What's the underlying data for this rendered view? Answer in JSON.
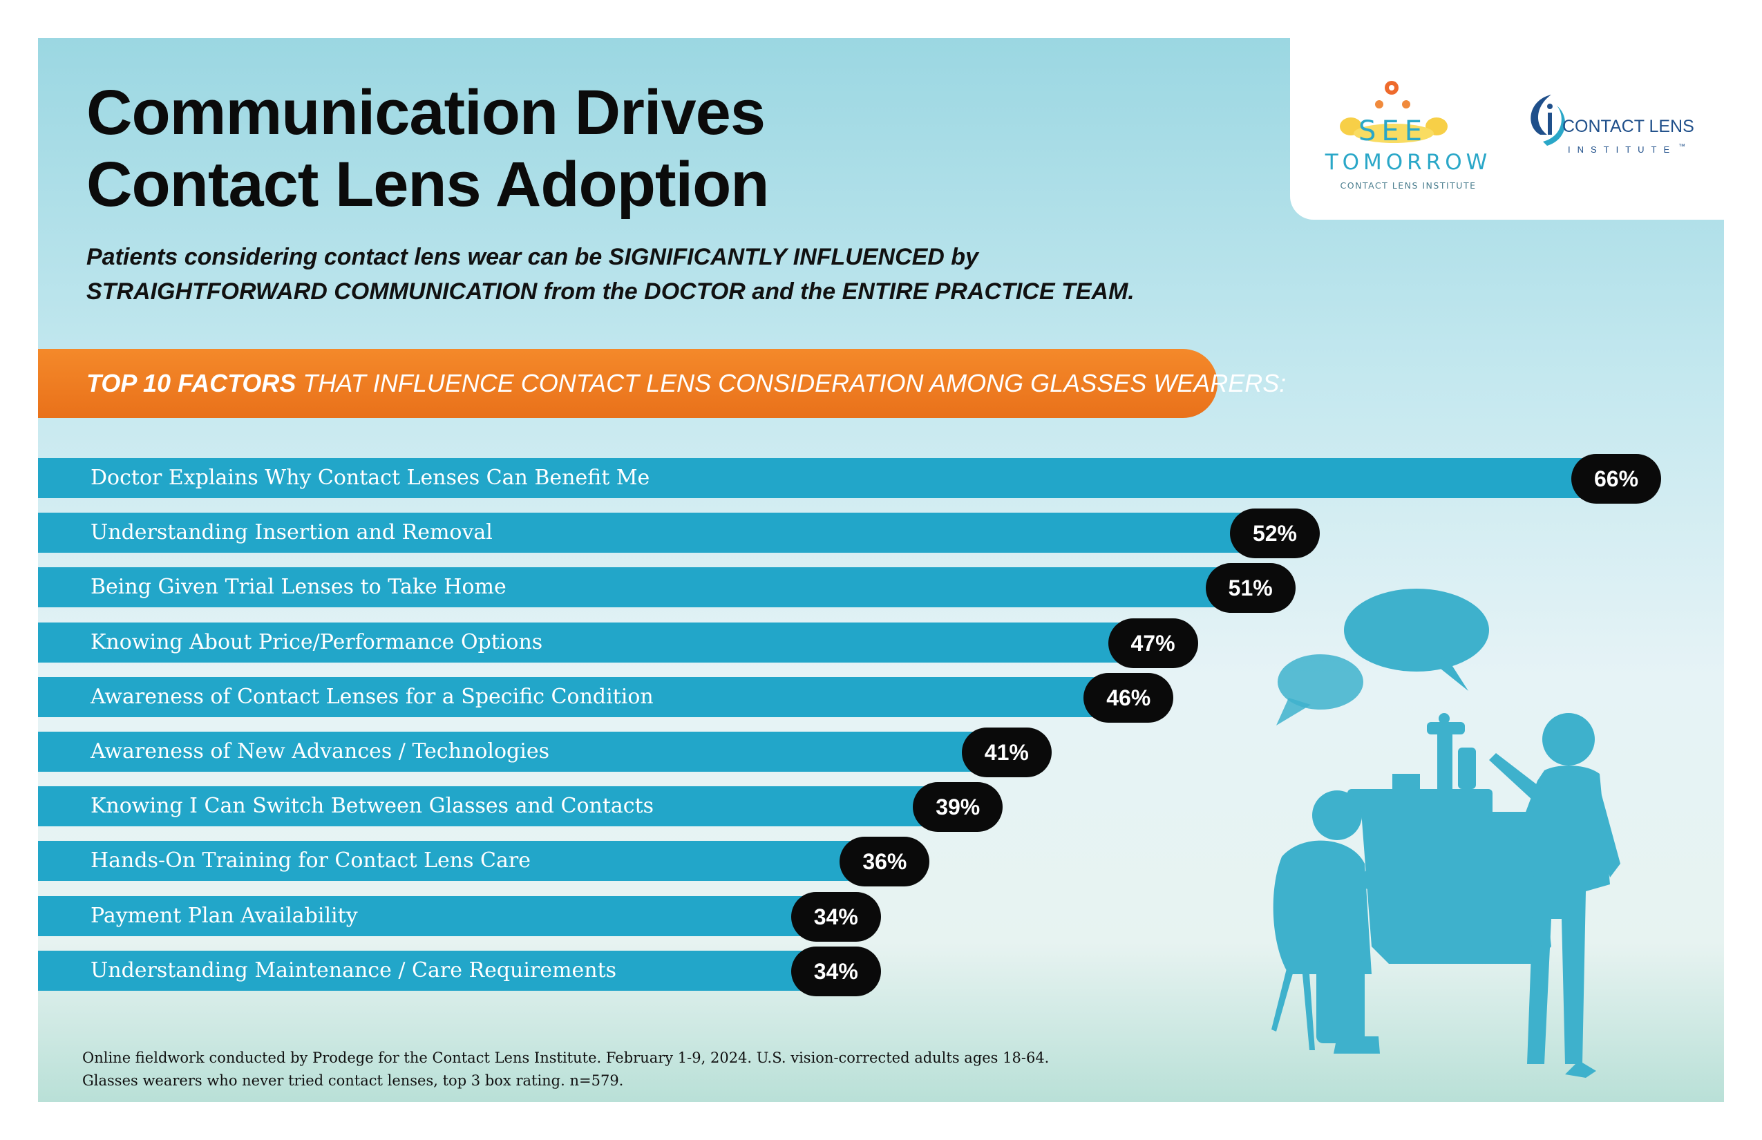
{
  "header": {
    "title_line1": "Communication Drives",
    "title_line2": "Contact Lens Adoption",
    "subtitle_line1": "Patients considering contact lens wear can be SIGNIFICANTLY INFLUENCED by",
    "subtitle_line2": "STRAIGHTFORWARD COMMUNICATION from the DOCTOR and the ENTIRE PRACTICE TEAM."
  },
  "logos": {
    "see": "SEE",
    "tomorrow": "TOMORROW",
    "see_tomorrow_sub": "CONTACT LENS INSTITUTE",
    "cli_line1": "CONTACT LENS",
    "cli_line2": "INSTITUTE",
    "cli_tm": "™"
  },
  "banner": {
    "bold": "TOP 10 FACTORS",
    "rest": " THAT INFLUENCE CONTACT LENS CONSIDERATION AMONG GLASSES WEARERS:"
  },
  "colors": {
    "bar": "#22a6c9",
    "banner": "#f07f22",
    "pill": "#0a0a0a",
    "illustration": "#3eb1cc"
  },
  "chart_data": {
    "type": "bar",
    "orientation": "horizontal",
    "title": "TOP 10 FACTORS THAT INFLUENCE CONTACT LENS CONSIDERATION AMONG GLASSES WEARERS:",
    "categories": [
      "Doctor Explains Why Contact Lenses Can Benefit Me",
      "Understanding Insertion and Removal",
      "Being Given Trial Lenses to Take Home",
      "Knowing About Price/Performance Options",
      "Awareness of Contact Lenses for a Specific Condition",
      "Awareness of New Advances / Technologies",
      "Knowing I Can Switch Between Glasses and Contacts",
      "Hands-On Training for Contact Lens Care",
      "Payment Plan Availability",
      "Understanding Maintenance / Care Requirements"
    ],
    "values": [
      66,
      52,
      51,
      47,
      46,
      41,
      39,
      36,
      34,
      34
    ],
    "value_labels": [
      "66%",
      "52%",
      "51%",
      "47%",
      "46%",
      "41%",
      "39%",
      "36%",
      "34%",
      "34%"
    ],
    "unit": "%",
    "xlim": [
      0,
      66
    ]
  },
  "footnote": {
    "line1": "Online fieldwork conducted by Prodege for the Contact Lens Institute. February 1-9, 2024. U.S. vision-corrected adults ages 18-64.",
    "line2": "Glasses wearers who never tried contact lenses, top 3 box rating. n=579."
  }
}
